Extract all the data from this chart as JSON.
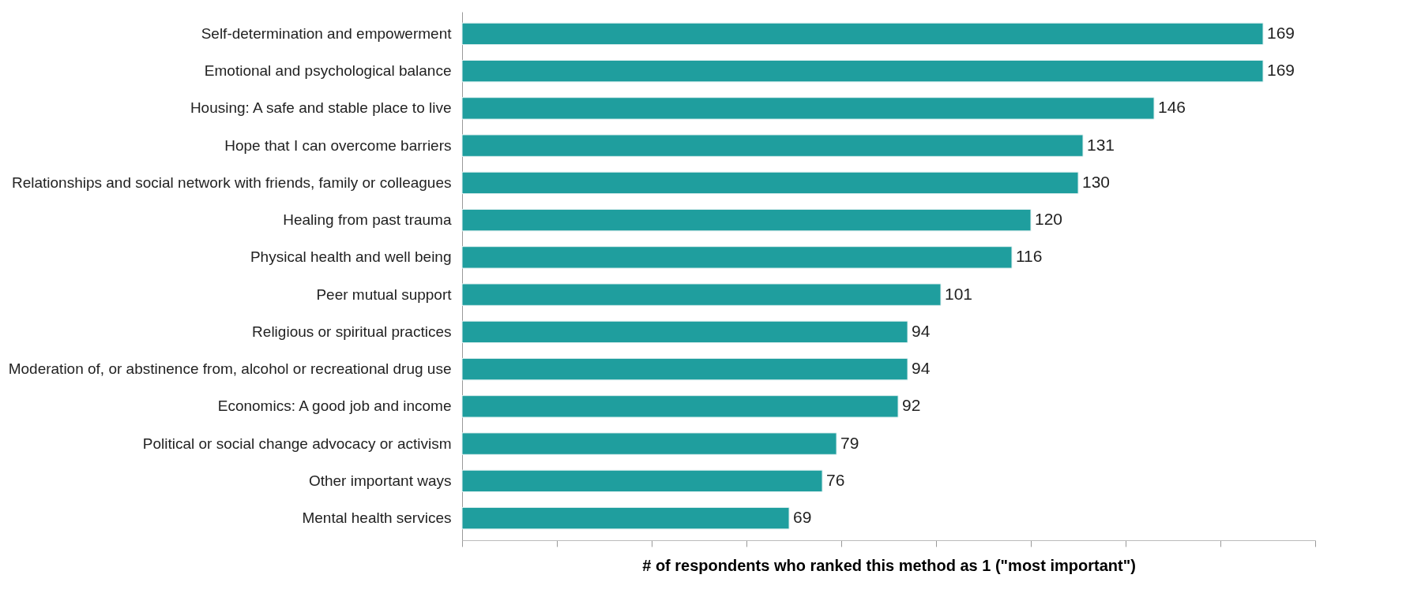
{
  "chart_data": {
    "type": "bar",
    "orientation": "horizontal",
    "xlabel": "# of respondents who ranked this method as 1 (\"most important\")",
    "categories": [
      "Self-determination and empowerment",
      "Emotional and psychological balance",
      "Housing: A safe and stable place to live",
      "Hope that I can overcome barriers",
      "Relationships and social network with friends, family or colleagues",
      "Healing from past trauma",
      "Physical health and well being",
      "Peer mutual support",
      "Religious or spiritual practices",
      "Moderation of, or abstinence from, alcohol or recreational drug use",
      "Economics: A good job and income",
      "Political or social change advocacy or activism",
      "Other important ways",
      "Mental health services"
    ],
    "values": [
      169,
      169,
      146,
      131,
      130,
      120,
      116,
      101,
      94,
      94,
      92,
      79,
      76,
      69
    ],
    "color": "#1f9e9e",
    "xlim": [
      0,
      180
    ],
    "xticks": [
      {
        "value": 0,
        "label": null
      },
      {
        "value": 20,
        "label": null
      },
      {
        "value": 40,
        "label": null
      },
      {
        "value": 60,
        "label": null
      },
      {
        "value": 80,
        "label": null
      },
      {
        "value": 100,
        "label": null
      },
      {
        "value": 120,
        "label": null
      },
      {
        "value": 140,
        "label": null
      },
      {
        "value": 160,
        "label": null
      },
      {
        "value": 180,
        "label": null
      }
    ],
    "tick_labels": "y",
    "data_labels": true,
    "grid": false
  }
}
